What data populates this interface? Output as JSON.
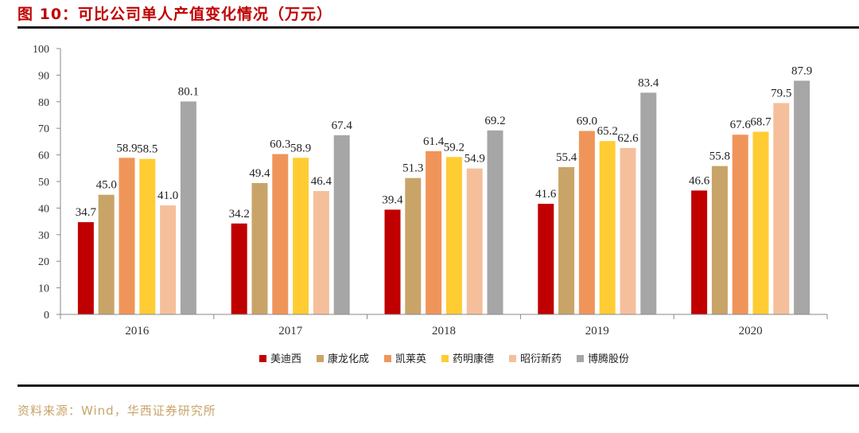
{
  "title": "图 10：可比公司单人产值变化情况（万元）",
  "source": "资料来源：Wind，华西证券研究所",
  "chart_data": {
    "type": "bar",
    "title": "图 10：可比公司单人产值变化情况（万元）",
    "xlabel": "",
    "ylabel": "",
    "ylim": [
      0,
      100
    ],
    "yticks": [
      0,
      10,
      20,
      30,
      40,
      50,
      60,
      70,
      80,
      90,
      100
    ],
    "categories": [
      "2016",
      "2017",
      "2018",
      "2019",
      "2020"
    ],
    "legend_position": "bottom",
    "grid": false,
    "series": [
      {
        "name": "美迪西",
        "color": "#c00000",
        "values": [
          34.7,
          34.2,
          39.4,
          41.6,
          46.6
        ]
      },
      {
        "name": "康龙化成",
        "color": "#c9a468",
        "values": [
          45.0,
          49.4,
          51.3,
          55.4,
          55.8
        ]
      },
      {
        "name": "凯莱英",
        "color": "#f0955a",
        "values": [
          58.9,
          60.3,
          61.4,
          69.0,
          67.6
        ]
      },
      {
        "name": "药明康德",
        "color": "#ffcc33",
        "values": [
          58.5,
          58.9,
          59.2,
          65.2,
          68.7
        ]
      },
      {
        "name": "昭衍新药",
        "color": "#f5bf9c",
        "values": [
          41.0,
          46.4,
          54.9,
          62.6,
          79.5
        ]
      },
      {
        "name": "博腾股份",
        "color": "#a6a6a6",
        "values": [
          80.1,
          67.4,
          69.2,
          83.4,
          87.9
        ]
      }
    ]
  }
}
